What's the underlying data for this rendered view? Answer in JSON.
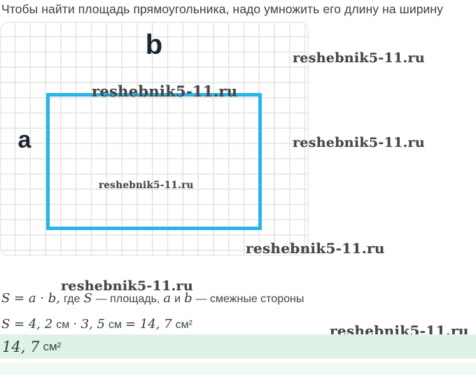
{
  "title": "Чтобы найти площадь прямоугольника, надо умножить его длину на ширину",
  "watermark": "reshebnik5-11.ru",
  "diagram": {
    "label_a": "a",
    "label_b": "b",
    "rect_color": "#27b5e9",
    "grid_line_color": "#e3e3e3"
  },
  "formulas": {
    "line1": {
      "m1": "S = a · b,",
      "t1": "где",
      "m2": "S",
      "t2": "— площадь,",
      "m3": "a",
      "t3": "и",
      "m4": "b",
      "t4": "— смежные стороны"
    },
    "line2": {
      "m1": "S = 4, 2",
      "t1": "см",
      "m2": "· 3, 5",
      "t2": "см",
      "m3": "= 14, 7",
      "t3": "см²"
    },
    "answer": {
      "m1": "14, 7",
      "t1": "см²"
    }
  },
  "colors": {
    "answer_highlight": "#def3e6",
    "faint_highlight": "#f2faf5",
    "label_color": "#1c2631",
    "title_color": "#3c4045",
    "watermark_color": "#474747"
  }
}
